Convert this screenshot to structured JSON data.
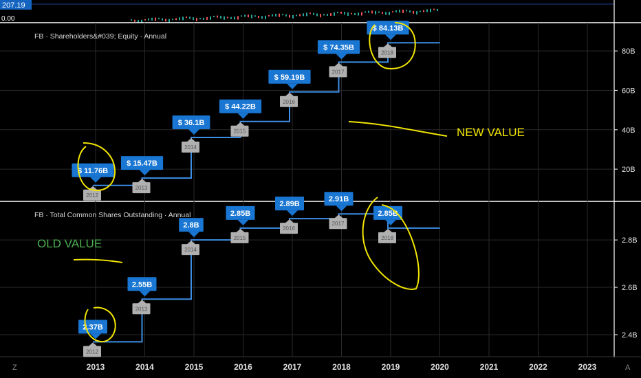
{
  "top_strip": {
    "price_label": "207.19",
    "zero_label": "0.00"
  },
  "left_badge": "Z",
  "right_badge": "A",
  "colors": {
    "background": "#000000",
    "grid": "#2a2a2a",
    "value_badge": "#1976d2",
    "year_badge": "#b0b0b0",
    "step_line": "#3d8ee6",
    "annotation": "#f2e600",
    "old_value_text": "#4caf50",
    "price_label_bg": "#1565c0"
  },
  "x_axis": {
    "ticks": [
      "2013",
      "2014",
      "2015",
      "2016",
      "2017",
      "2018",
      "2019",
      "2020",
      "2021",
      "2022",
      "2023"
    ]
  },
  "chart_data": [
    {
      "type": "line",
      "title": "FB · Shareholders&#039; Equity · Annual",
      "x": [
        "2013",
        "2014",
        "2015",
        "2016",
        "2017",
        "2018",
        "2019"
      ],
      "series": [
        {
          "values": [
            11.76,
            15.47,
            36.1,
            44.22,
            59.19,
            74.35,
            84.13
          ]
        }
      ],
      "value_labels": [
        "$ 11.76B",
        "$ 15.47B",
        "$ 36.1B",
        "$ 44.22B",
        "$ 59.19B",
        "$ 74.35B",
        "$ 84.13B"
      ],
      "year_labels": [
        "2012",
        "2013",
        "2014",
        "2015",
        "2016",
        "2017",
        "2018"
      ],
      "y_ticks": [
        "20B",
        "40B",
        "60B",
        "80B"
      ],
      "y_tick_values": [
        20,
        40,
        60,
        80
      ],
      "ylim": [
        4,
        94
      ],
      "xlim": [
        "2012",
        "2023"
      ],
      "annotation": "NEW VALUE"
    },
    {
      "type": "line",
      "title": "FB · Total Common Shares Outstanding · Annual",
      "x": [
        "2013",
        "2014",
        "2015",
        "2016",
        "2017",
        "2018",
        "2019"
      ],
      "series": [
        {
          "values": [
            2.37,
            2.55,
            2.8,
            2.85,
            2.89,
            2.91,
            2.85
          ]
        }
      ],
      "value_labels": [
        "2.37B",
        "2.55B",
        "2.8B",
        "2.85B",
        "2.89B",
        "2.91B",
        "2.85B"
      ],
      "year_labels": [
        "2012",
        "2013",
        "2014",
        "2015",
        "2016",
        "2017",
        "2018"
      ],
      "y_ticks": [
        "2.4B",
        "2.6B",
        "2.8B"
      ],
      "y_tick_values": [
        2.4,
        2.6,
        2.8
      ],
      "ylim": [
        2.31,
        2.96
      ],
      "xlim": [
        "2012",
        "2023"
      ],
      "annotation": "OLD VALUE"
    }
  ]
}
